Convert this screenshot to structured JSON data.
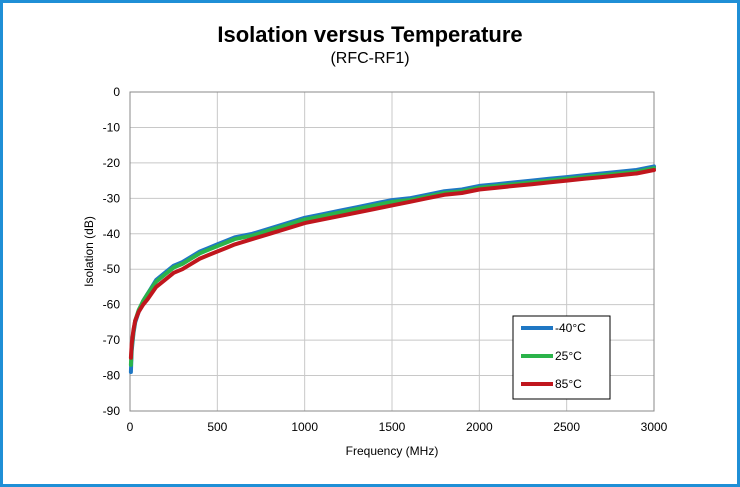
{
  "chart_data": {
    "type": "line",
    "title": "Isolation versus Temperature",
    "subtitle": "(RFC-RF1)",
    "xlabel": "Frequency (MHz)",
    "ylabel": "Isolation (dB)",
    "xlim": [
      0,
      3000
    ],
    "ylim": [
      -90,
      0
    ],
    "xticks": [
      "0",
      "500",
      "1000",
      "1500",
      "2000",
      "2500",
      "3000"
    ],
    "yticks": [
      "0",
      "-10",
      "-20",
      "-30",
      "-40",
      "-50",
      "-60",
      "-70",
      "-80",
      "-90"
    ],
    "grid": true,
    "legend_position": "bottom-right",
    "series": [
      {
        "name": "-40°C",
        "color": "#1f77c4",
        "x": [
          5,
          10,
          20,
          30,
          50,
          75,
          100,
          150,
          200,
          250,
          300,
          350,
          400,
          450,
          500,
          550,
          600,
          700,
          800,
          900,
          1000,
          1100,
          1200,
          1300,
          1400,
          1500,
          1600,
          1700,
          1800,
          1900,
          2000,
          2100,
          2200,
          2300,
          2400,
          2500,
          2600,
          2700,
          2800,
          2900,
          3000
        ],
        "y": [
          -79,
          -73,
          -68,
          -65,
          -62,
          -59,
          -57,
          -53,
          -51,
          -49,
          -48,
          -46.5,
          -45,
          -44,
          -43,
          -42,
          -41,
          -40,
          -38.5,
          -37,
          -35.5,
          -34.5,
          -33.5,
          -32.5,
          -31.5,
          -30.5,
          -30,
          -29,
          -28,
          -27.5,
          -26.5,
          -26,
          -25.5,
          -25,
          -24.5,
          -24,
          -23.5,
          -23,
          -22.5,
          -22,
          -21
        ]
      },
      {
        "name": "25°C",
        "color": "#2bb34a",
        "x": [
          5,
          10,
          20,
          30,
          50,
          75,
          100,
          150,
          200,
          250,
          300,
          350,
          400,
          450,
          500,
          550,
          600,
          700,
          800,
          900,
          1000,
          1100,
          1200,
          1300,
          1400,
          1500,
          1600,
          1700,
          1800,
          1900,
          2000,
          2100,
          2200,
          2300,
          2400,
          2500,
          2600,
          2700,
          2800,
          2900,
          3000
        ],
        "y": [
          -77,
          -72,
          -67.5,
          -64.5,
          -61.5,
          -59,
          -57,
          -53.5,
          -51.5,
          -49.5,
          -48.5,
          -47,
          -45.5,
          -44.5,
          -43.5,
          -42.5,
          -41.5,
          -40.5,
          -39,
          -37.5,
          -36,
          -35,
          -34,
          -33,
          -32,
          -31,
          -30.5,
          -29.5,
          -28.5,
          -28,
          -27,
          -26.5,
          -26,
          -25.5,
          -25,
          -24.5,
          -24,
          -23.5,
          -23,
          -22.5,
          -21.5
        ]
      },
      {
        "name": "85°C",
        "color": "#c0161d",
        "x": [
          5,
          10,
          20,
          30,
          50,
          75,
          100,
          150,
          200,
          250,
          300,
          350,
          400,
          450,
          500,
          550,
          600,
          700,
          800,
          900,
          1000,
          1100,
          1200,
          1300,
          1400,
          1500,
          1600,
          1700,
          1800,
          1900,
          2000,
          2100,
          2200,
          2300,
          2400,
          2500,
          2600,
          2700,
          2800,
          2900,
          3000
        ],
        "y": [
          -75,
          -71,
          -67,
          -64.5,
          -62,
          -60,
          -58.5,
          -55,
          -53,
          -51,
          -50,
          -48.5,
          -47,
          -46,
          -45,
          -44,
          -43,
          -41.5,
          -40,
          -38.5,
          -37,
          -36,
          -35,
          -34,
          -33,
          -32,
          -31,
          -30,
          -29,
          -28.5,
          -27.5,
          -27,
          -26.5,
          -26,
          -25.5,
          -25,
          -24.5,
          -24,
          -23.5,
          -23,
          -22
        ]
      }
    ]
  }
}
